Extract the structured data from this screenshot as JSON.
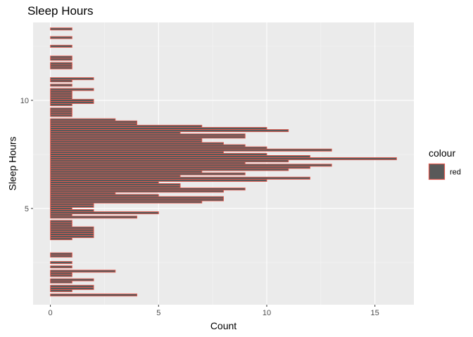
{
  "chart_data": {
    "type": "bar",
    "orientation": "horizontal",
    "title": "Sleep Hours",
    "xlabel": "Count",
    "ylabel": "Sleep Hours",
    "xlim": [
      -0.8,
      16.8
    ],
    "ylim": [
      0.55,
      13.6
    ],
    "xticks": [
      0,
      5,
      10,
      15
    ],
    "yticks": [
      5,
      10
    ],
    "bar_height": 0.1,
    "grid": true,
    "fill_color": "#595959",
    "outline_color": "#e05a4f",
    "panel_background": "#ebebeb",
    "legend": {
      "title": "colour",
      "labels": [
        "red"
      ],
      "position": "right"
    },
    "bars": [
      {
        "y": 1.0,
        "count": 4
      },
      {
        "y": 1.2,
        "count": 1
      },
      {
        "y": 1.3,
        "count": 2
      },
      {
        "y": 1.4,
        "count": 2
      },
      {
        "y": 1.6,
        "count": 1
      },
      {
        "y": 1.7,
        "count": 2
      },
      {
        "y": 1.9,
        "count": 1
      },
      {
        "y": 2.0,
        "count": 1
      },
      {
        "y": 2.1,
        "count": 3
      },
      {
        "y": 2.3,
        "count": 1
      },
      {
        "y": 2.5,
        "count": 1
      },
      {
        "y": 2.8,
        "count": 1
      },
      {
        "y": 2.9,
        "count": 1
      },
      {
        "y": 3.6,
        "count": 1
      },
      {
        "y": 3.7,
        "count": 2
      },
      {
        "y": 3.8,
        "count": 2
      },
      {
        "y": 3.9,
        "count": 2
      },
      {
        "y": 4.0,
        "count": 2
      },
      {
        "y": 4.1,
        "count": 2
      },
      {
        "y": 4.2,
        "count": 1
      },
      {
        "y": 4.3,
        "count": 1
      },
      {
        "y": 4.4,
        "count": 1
      },
      {
        "y": 4.6,
        "count": 4
      },
      {
        "y": 4.7,
        "count": 1
      },
      {
        "y": 4.8,
        "count": 5
      },
      {
        "y": 4.9,
        "count": 2
      },
      {
        "y": 5.0,
        "count": 1
      },
      {
        "y": 5.1,
        "count": 2
      },
      {
        "y": 5.2,
        "count": 2
      },
      {
        "y": 5.3,
        "count": 7
      },
      {
        "y": 5.4,
        "count": 8
      },
      {
        "y": 5.5,
        "count": 8
      },
      {
        "y": 5.6,
        "count": 5
      },
      {
        "y": 5.7,
        "count": 3
      },
      {
        "y": 5.8,
        "count": 8
      },
      {
        "y": 5.9,
        "count": 9
      },
      {
        "y": 6.0,
        "count": 6
      },
      {
        "y": 6.1,
        "count": 6
      },
      {
        "y": 6.2,
        "count": 5
      },
      {
        "y": 6.3,
        "count": 10
      },
      {
        "y": 6.4,
        "count": 12
      },
      {
        "y": 6.5,
        "count": 6
      },
      {
        "y": 6.6,
        "count": 9
      },
      {
        "y": 6.7,
        "count": 7
      },
      {
        "y": 6.8,
        "count": 11
      },
      {
        "y": 6.9,
        "count": 12
      },
      {
        "y": 7.0,
        "count": 13
      },
      {
        "y": 7.1,
        "count": 9
      },
      {
        "y": 7.2,
        "count": 11
      },
      {
        "y": 7.3,
        "count": 16
      },
      {
        "y": 7.4,
        "count": 12
      },
      {
        "y": 7.5,
        "count": 10
      },
      {
        "y": 7.6,
        "count": 8
      },
      {
        "y": 7.7,
        "count": 13
      },
      {
        "y": 7.8,
        "count": 10
      },
      {
        "y": 7.9,
        "count": 9
      },
      {
        "y": 8.0,
        "count": 8
      },
      {
        "y": 8.1,
        "count": 7
      },
      {
        "y": 8.2,
        "count": 7
      },
      {
        "y": 8.3,
        "count": 9
      },
      {
        "y": 8.4,
        "count": 9
      },
      {
        "y": 8.5,
        "count": 6
      },
      {
        "y": 8.6,
        "count": 11
      },
      {
        "y": 8.7,
        "count": 10
      },
      {
        "y": 8.8,
        "count": 7
      },
      {
        "y": 8.9,
        "count": 4
      },
      {
        "y": 9.0,
        "count": 4
      },
      {
        "y": 9.1,
        "count": 3
      },
      {
        "y": 9.3,
        "count": 1
      },
      {
        "y": 9.4,
        "count": 1
      },
      {
        "y": 9.5,
        "count": 1
      },
      {
        "y": 9.6,
        "count": 1
      },
      {
        "y": 9.8,
        "count": 1
      },
      {
        "y": 9.9,
        "count": 2
      },
      {
        "y": 10.0,
        "count": 2
      },
      {
        "y": 10.1,
        "count": 1
      },
      {
        "y": 10.2,
        "count": 1
      },
      {
        "y": 10.3,
        "count": 1
      },
      {
        "y": 10.4,
        "count": 1
      },
      {
        "y": 10.5,
        "count": 2
      },
      {
        "y": 10.7,
        "count": 1
      },
      {
        "y": 10.9,
        "count": 1
      },
      {
        "y": 11.0,
        "count": 2
      },
      {
        "y": 11.5,
        "count": 1
      },
      {
        "y": 11.6,
        "count": 1
      },
      {
        "y": 11.7,
        "count": 1
      },
      {
        "y": 11.9,
        "count": 1
      },
      {
        "y": 12.0,
        "count": 1
      },
      {
        "y": 12.5,
        "count": 1
      },
      {
        "y": 12.9,
        "count": 1
      },
      {
        "y": 13.3,
        "count": 1
      }
    ]
  }
}
